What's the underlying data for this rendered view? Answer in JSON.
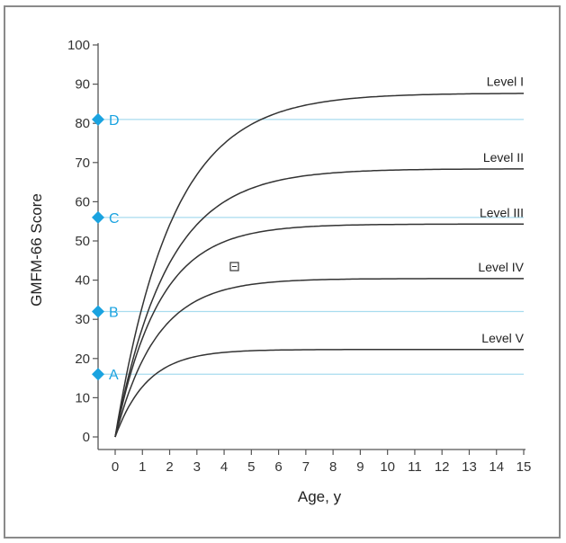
{
  "chart_data": {
    "type": "line",
    "xlabel": "Age, y",
    "ylabel": "GMFM-66 Score",
    "xlim": [
      0,
      15
    ],
    "ylim": [
      0,
      100
    ],
    "xticks": [
      "0",
      "1",
      "2",
      "3",
      "4",
      "5",
      "6",
      "7",
      "8",
      "9",
      "10",
      "11",
      "12",
      "13",
      "14",
      "15"
    ],
    "yticks": [
      "0",
      "10",
      "20",
      "30",
      "40",
      "50",
      "60",
      "70",
      "80",
      "90",
      "100"
    ],
    "grid": false,
    "series": [
      {
        "name": "Level I",
        "limit": 87.7,
        "age_to_90pct": 4.8,
        "x": [
          0,
          1,
          2,
          3,
          4,
          5,
          6,
          7,
          8,
          9,
          10,
          11,
          12,
          13,
          14,
          15
        ],
        "y": [
          0,
          33.8,
          54.5,
          67.1,
          74.9,
          79.6,
          82.5,
          84.3,
          85.4,
          86.1,
          86.5,
          86.8,
          87.0,
          87.1,
          87.1,
          87.2
        ]
      },
      {
        "name": "Level II",
        "limit": 68.4,
        "age_to_90pct": 4.4,
        "x": [
          0,
          1,
          2,
          3,
          4,
          5,
          6,
          7,
          8,
          9,
          10,
          11,
          12,
          13,
          14,
          15
        ],
        "y": [
          0,
          28.6,
          45.3,
          55.1,
          60.8,
          64.1,
          66.1,
          67.2,
          67.8,
          68.2,
          68.4,
          68.5,
          68.6,
          68.6,
          68.6,
          68.6
        ]
      },
      {
        "name": "Level III",
        "limit": 54.3,
        "age_to_90pct": 3.7,
        "x": [
          0,
          1,
          2,
          3,
          4,
          5,
          6,
          7,
          8,
          9,
          10,
          11,
          12,
          13,
          14,
          15
        ],
        "y": [
          0,
          25.9,
          39.5,
          46.6,
          50.3,
          52.3,
          53.3,
          53.9,
          54.1,
          54.3,
          54.4,
          54.4,
          54.4,
          54.4,
          54.4,
          54.4
        ]
      },
      {
        "name": "Level IV",
        "limit": 40.4,
        "age_to_90pct": 3.5,
        "x": [
          0,
          1,
          2,
          3,
          4,
          5,
          6,
          7,
          8,
          9,
          10,
          11,
          12,
          13,
          14,
          15
        ],
        "y": [
          0,
          20.2,
          30.4,
          35.5,
          38.0,
          39.3,
          40.0,
          40.3,
          40.4,
          40.5,
          40.5,
          40.5,
          40.5,
          40.5,
          40.5,
          40.5
        ]
      },
      {
        "name": "Level V",
        "limit": 22.3,
        "age_to_90pct": 2.7,
        "x": [
          0,
          1,
          2,
          3,
          4,
          5,
          6,
          7,
          8,
          9,
          10,
          11,
          12,
          13,
          14,
          15
        ],
        "y": [
          0,
          13.1,
          18.5,
          20.7,
          21.6,
          22.0,
          22.2,
          22.2,
          22.3,
          22.3,
          22.3,
          22.3,
          22.3,
          22.3,
          22.3,
          22.3
        ]
      }
    ],
    "reference_lines": [
      {
        "label": "A",
        "y": 16
      },
      {
        "label": "B",
        "y": 32
      },
      {
        "label": "C",
        "y": 56
      },
      {
        "label": "D",
        "y": 81
      }
    ],
    "colors": {
      "curve": "#333333",
      "reference": "#a8dcef",
      "marker": "#1aa3e0",
      "axis": "#555555"
    }
  }
}
